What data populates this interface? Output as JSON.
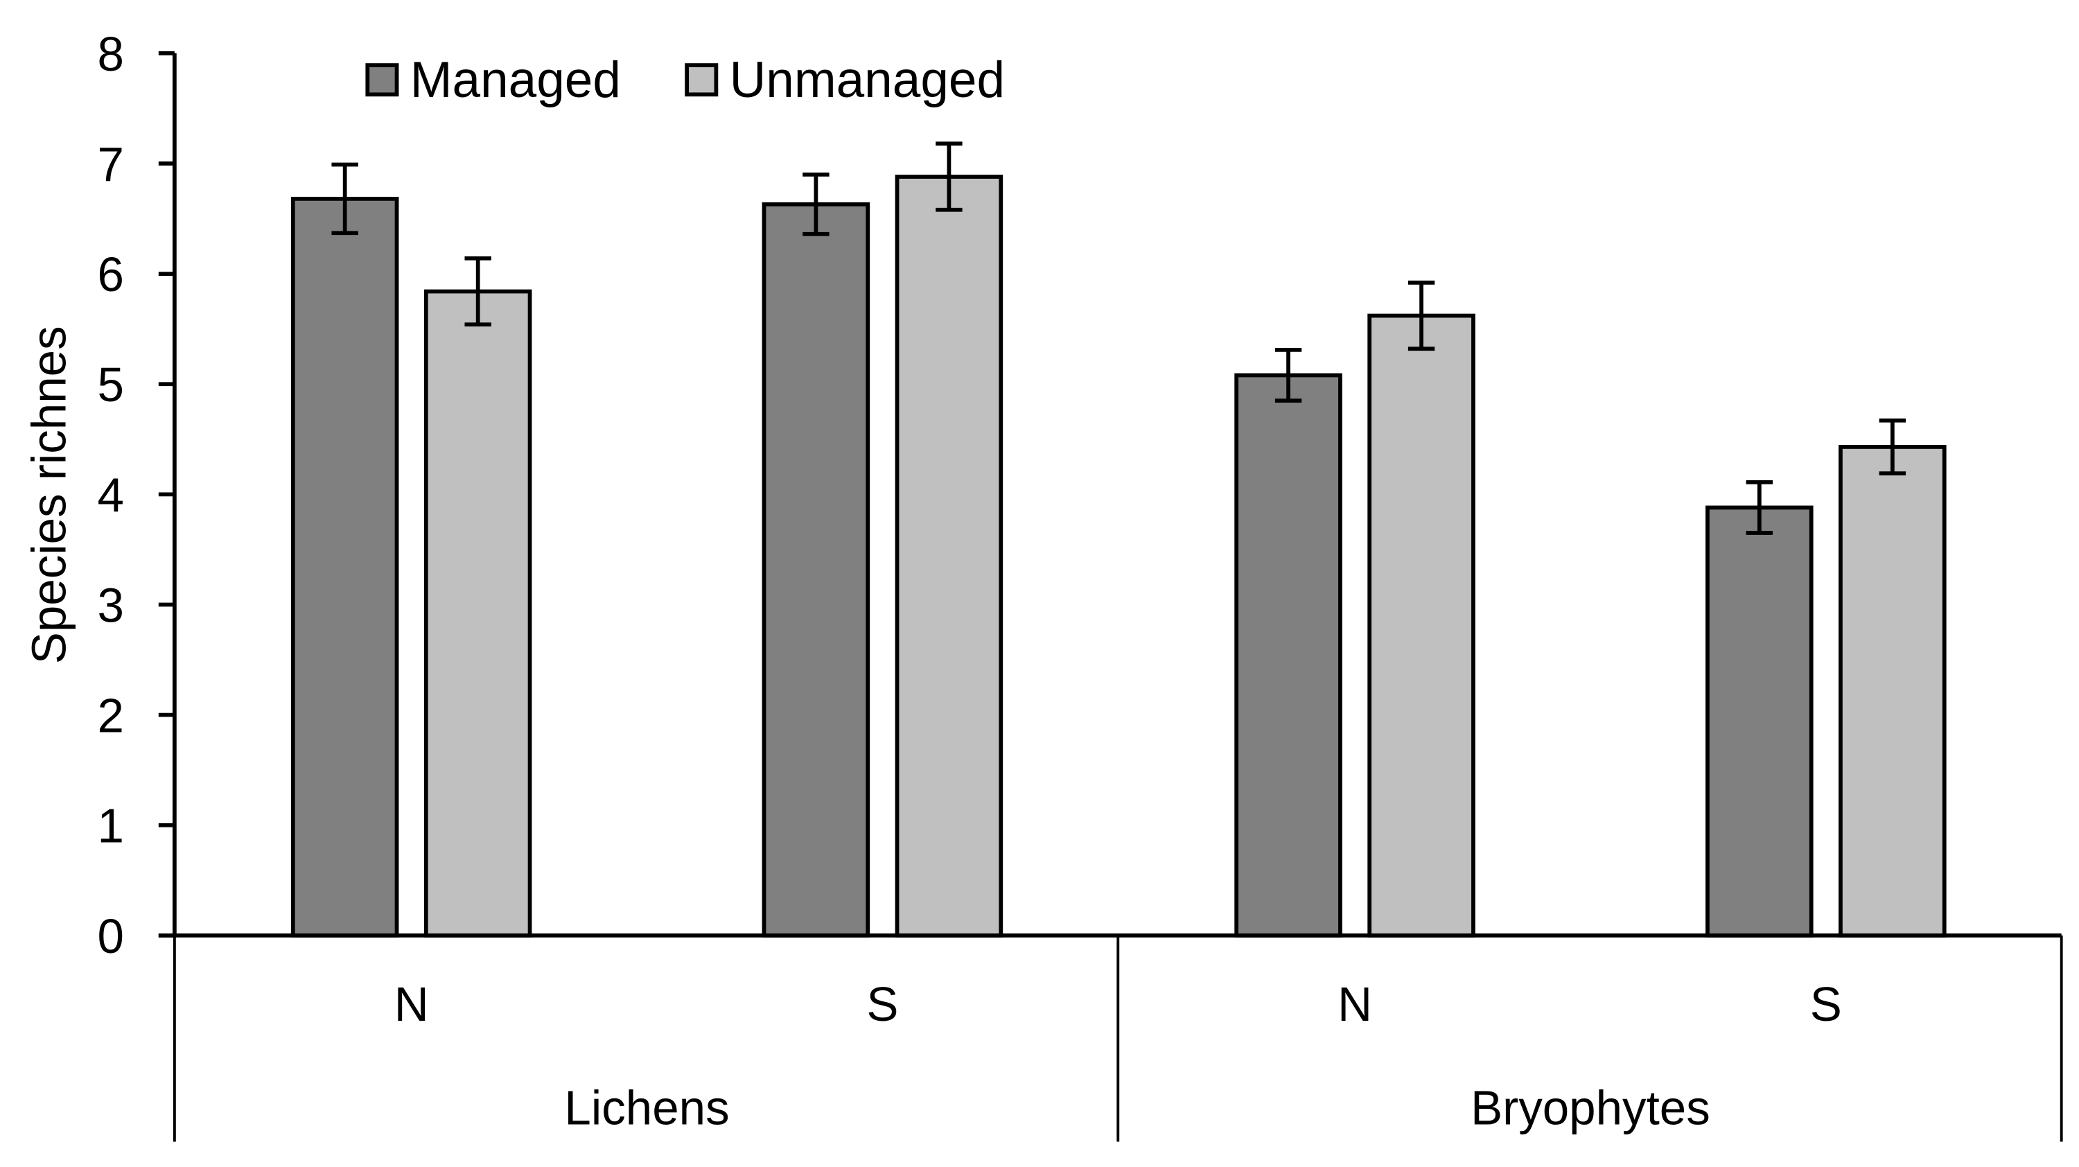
{
  "chart_data": {
    "type": "bar",
    "title": "",
    "xlabel": "",
    "ylabel": "Species richnes",
    "ylim": [
      0,
      8
    ],
    "yticks": [
      0,
      1,
      2,
      3,
      4,
      5,
      6,
      7,
      8
    ],
    "grid": false,
    "legend_position": "top-left",
    "groups": [
      "Lichens",
      "Bryophytes"
    ],
    "categories": [
      "N",
      "S",
      "N",
      "S"
    ],
    "category_groups": [
      "Lichens",
      "Lichens",
      "Bryophytes",
      "Bryophytes"
    ],
    "series": [
      {
        "name": "Managed",
        "color": "#808080",
        "values": [
          6.68,
          6.63,
          5.08,
          3.88
        ],
        "errors": [
          0.31,
          0.27,
          0.23,
          0.23
        ]
      },
      {
        "name": "Unmanaged",
        "color": "#c0c0c0",
        "values": [
          5.84,
          6.88,
          5.62,
          4.43
        ],
        "errors": [
          0.3,
          0.3,
          0.3,
          0.24
        ]
      }
    ]
  }
}
